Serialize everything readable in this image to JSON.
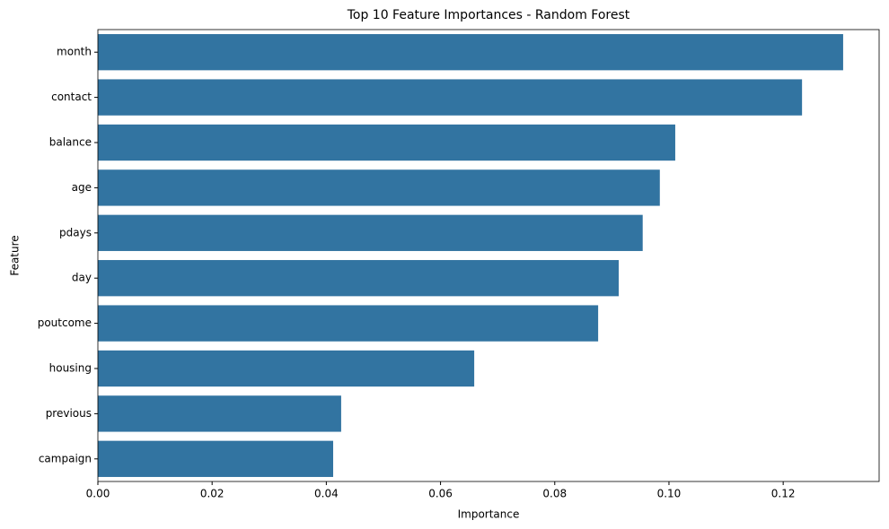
{
  "chart_data": {
    "type": "barh",
    "title": "Top 10 Feature Importances - Random Forest",
    "x_label": "Importance",
    "y_label": "Feature",
    "categories": [
      "month",
      "contact",
      "balance",
      "age",
      "pdays",
      "day",
      "poutcome",
      "housing",
      "previous",
      "campaign"
    ],
    "values": [
      0.1305,
      0.1233,
      0.1011,
      0.0984,
      0.0954,
      0.0912,
      0.0876,
      0.0659,
      0.0426,
      0.0412
    ],
    "color": "#3274a1",
    "xlim": [
      0,
      0.1368
    ],
    "xticks": [
      {
        "value": 0,
        "label": "0.00"
      },
      {
        "value": 0.02,
        "label": "0.02"
      },
      {
        "value": 0.04,
        "label": "0.04"
      },
      {
        "value": 0.06,
        "label": "0.06"
      },
      {
        "value": 0.08,
        "label": "0.08"
      },
      {
        "value": 0.1,
        "label": "0.10"
      },
      {
        "value": 0.12,
        "label": "0.12"
      }
    ],
    "grid": false
  }
}
